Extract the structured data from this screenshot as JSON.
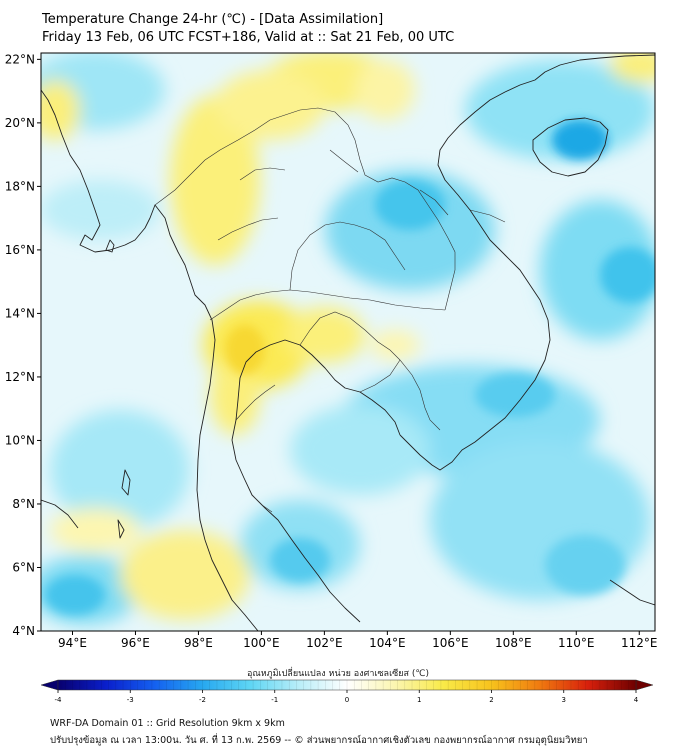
{
  "header": {
    "title_line1": "Temperature Change 24-hr (℃) - [Data Assimilation]",
    "title_line2": "Friday 13 Feb, 06 UTC FCST+186, Valid at :: Sat 21 Feb, 00 UTC"
  },
  "map": {
    "lon_range": [
      93,
      112.5
    ],
    "lat_range": [
      4,
      22.2
    ],
    "lat_ticks": [
      {
        "value": 22,
        "label": "22°N"
      },
      {
        "value": 20,
        "label": "20°N"
      },
      {
        "value": 18,
        "label": "18°N"
      },
      {
        "value": 16,
        "label": "16°N"
      },
      {
        "value": 14,
        "label": "14°N"
      },
      {
        "value": 12,
        "label": "12°N"
      },
      {
        "value": 10,
        "label": "10°N"
      },
      {
        "value": 8,
        "label": "8°N"
      },
      {
        "value": 6,
        "label": "6°N"
      },
      {
        "value": 4,
        "label": "4°N"
      }
    ],
    "lon_ticks": [
      {
        "value": 94,
        "label": "94°E"
      },
      {
        "value": 96,
        "label": "96°E"
      },
      {
        "value": 98,
        "label": "98°E"
      },
      {
        "value": 100,
        "label": "100°E"
      },
      {
        "value": 102,
        "label": "102°E"
      },
      {
        "value": 104,
        "label": "104°E"
      },
      {
        "value": 106,
        "label": "106°E"
      },
      {
        "value": 108,
        "label": "108°E"
      },
      {
        "value": 110,
        "label": "110°E"
      },
      {
        "value": 112,
        "label": "112°E"
      }
    ],
    "colors": {
      "background": "#e6f7fb",
      "light_blue": "#c4eef8",
      "cyan": "#88dff4",
      "cyan_strong": "#55cdef",
      "blue_core": "#18a6e4",
      "yellow": "#fbf07a",
      "yellow_light": "#fdf8b8",
      "coast": "#222222"
    }
  },
  "colorbar": {
    "label": "อุณหภูมิเปลี่ยนแปลง หน่วย องศาเซลเซียส (℃)",
    "min": -4,
    "max": 4,
    "ticks": [
      {
        "value": -4,
        "label": "-4"
      },
      {
        "value": -3,
        "label": "-3"
      },
      {
        "value": -2,
        "label": "-2"
      },
      {
        "value": -1,
        "label": "-1"
      },
      {
        "value": 0,
        "label": "0"
      },
      {
        "value": 1,
        "label": "1"
      },
      {
        "value": 2,
        "label": "2"
      },
      {
        "value": 3,
        "label": "3"
      },
      {
        "value": 4,
        "label": "4"
      }
    ],
    "stops": [
      "#08006e",
      "#0a1fcc",
      "#1460f0",
      "#27a8f0",
      "#5fd6f4",
      "#b9eef8",
      "#ffffff",
      "#fbf6b0",
      "#f9ea48",
      "#f7c21c",
      "#f07a10",
      "#d8200c",
      "#6e0000"
    ]
  },
  "footer": {
    "line1": "WRF-DA Domain 01 :: Grid Resolution 9km x 9km",
    "line2": "ปรับปรุงข้อมูล ณ เวลา 13:00น. วัน ศ. ที่ 13 ก.พ. 2569 -- © ส่วนพยากรณ์อากาศเชิงตัวเลข กองพยากรณ์อากาศ กรมอุตุนิยมวิทยา"
  }
}
